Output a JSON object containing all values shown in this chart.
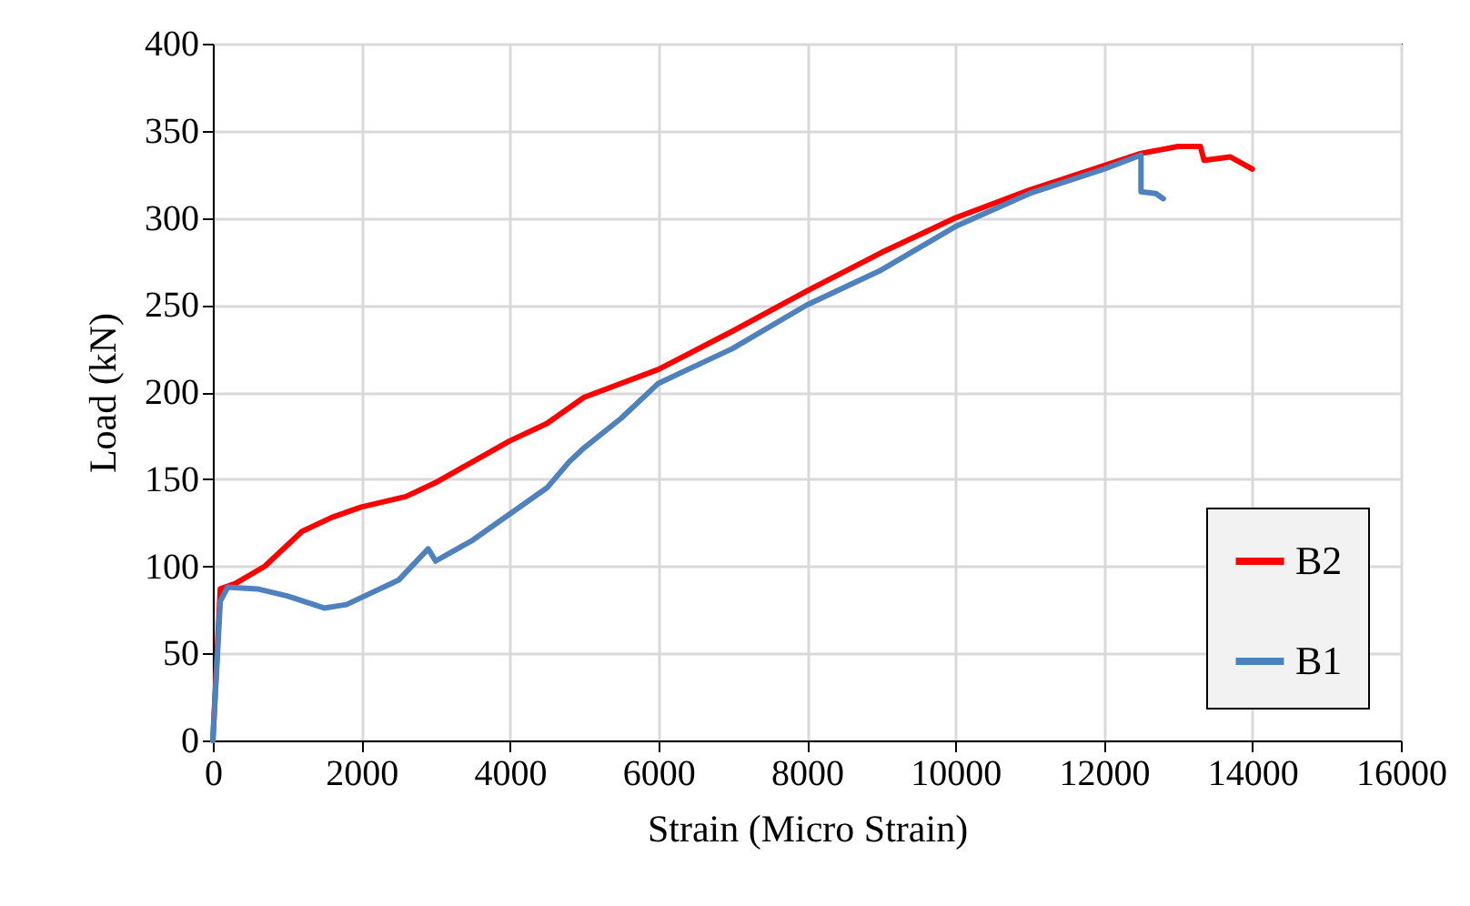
{
  "chart_data": {
    "type": "line",
    "xlabel": "Strain (Micro Strain)",
    "ylabel": "Load (kN)",
    "xlim": [
      0,
      16000
    ],
    "xticks": [
      0,
      2000,
      4000,
      6000,
      8000,
      10000,
      12000,
      14000,
      16000
    ],
    "ylim": [
      0,
      400
    ],
    "yticks": [
      0,
      50,
      100,
      150,
      200,
      250,
      300,
      350,
      400
    ],
    "grid": true,
    "legend": "bottom right",
    "line_style": "solid",
    "marker": "none",
    "series": [
      {
        "name": "B2",
        "color": "#ff0000",
        "x": [
          0,
          100,
          300,
          700,
          1200,
          1600,
          2000,
          2600,
          3000,
          3500,
          4000,
          4500,
          5000,
          6000,
          7000,
          8000,
          9000,
          10000,
          11000,
          12000,
          12500,
          13000,
          13300,
          13350,
          13700,
          14000
        ],
        "values": [
          0,
          87,
          90,
          100,
          120,
          128,
          134,
          140,
          148,
          160,
          172,
          182,
          197,
          213,
          235,
          258,
          280,
          300,
          316,
          330,
          337,
          341,
          341,
          333,
          335,
          328
        ]
      },
      {
        "name": "B1",
        "color": "#4f81bd",
        "x": [
          0,
          100,
          200,
          600,
          1000,
          1500,
          1800,
          2500,
          2900,
          3000,
          3500,
          4000,
          4500,
          4800,
          5000,
          5500,
          6000,
          7000,
          8000,
          9000,
          10000,
          11000,
          12000,
          12500,
          12500,
          12700,
          12800
        ],
        "values": [
          0,
          80,
          88,
          87,
          83,
          76,
          78,
          92,
          110,
          103,
          115,
          130,
          145,
          160,
          168,
          185,
          205,
          225,
          250,
          270,
          295,
          314,
          328,
          336,
          315,
          314,
          311
        ]
      }
    ]
  }
}
